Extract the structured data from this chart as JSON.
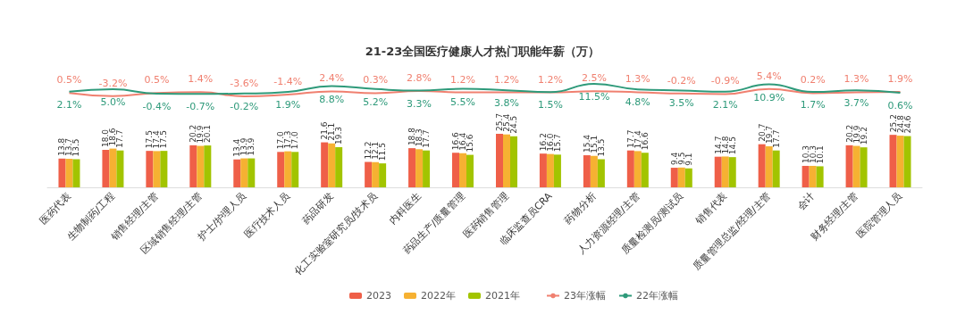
{
  "chart_data": [
    {
      "type": "line",
      "title": "21-23全国医疗健康人才热门职能年薪（万）",
      "legend": "bottom",
      "categories": [
        null,
        null,
        null,
        null,
        null,
        null,
        null,
        null,
        null,
        null,
        null,
        null,
        null,
        null,
        null,
        null,
        null,
        null,
        null,
        null
      ],
      "series": [
        {
          "name": "23年涨幅",
          "color": "#f08070",
          "values": [
            0.5,
            -3.2,
            0.5,
            1.4,
            -3.6,
            -1.4,
            2.4,
            0.3,
            2.8,
            1.2,
            1.2,
            1.2,
            2.5,
            1.3,
            -0.2,
            -0.9,
            5.4,
            0.2,
            1.3,
            1.9
          ],
          "value_labels": [
            "0.5%",
            "-3.2%",
            "0.5%",
            "1.4%",
            "-3.6%",
            "-1.4%",
            "2.4%",
            "0.3%",
            "2.8%",
            "1.2%",
            "1.2%",
            "1.2%",
            "2.5%",
            "1.3%",
            "-0.2%",
            "-0.9%",
            "5.4%",
            "0.2%",
            "1.3%",
            "1.9%"
          ]
        },
        {
          "name": "22年涨幅",
          "color": "#2e9a7a",
          "values": [
            2.1,
            5.0,
            -0.4,
            -0.7,
            -0.2,
            1.9,
            8.8,
            5.2,
            3.3,
            5.5,
            3.8,
            1.5,
            11.5,
            4.8,
            3.5,
            2.1,
            10.9,
            1.7,
            3.7,
            0.6
          ],
          "value_labels": [
            "2.1%",
            "5.0%",
            "-0.4%",
            "-0.7%",
            "-0.2%",
            "1.9%",
            "8.8%",
            "5.2%",
            "3.3%",
            "5.5%",
            "3.8%",
            "1.5%",
            "11.5%",
            "4.8%",
            "3.5%",
            "2.1%",
            "10.9%",
            "1.7%",
            "3.7%",
            "0.6%"
          ]
        }
      ]
    },
    {
      "type": "bar",
      "legend": "bottom",
      "categories": [
        "医药代表",
        "生物制药/工程",
        "销售经理/主管",
        "区域销售经理/主管",
        "护士/护理人员",
        "医疗技术人员",
        "药品研发",
        "化工实验室研究员/技术员",
        "内科医生",
        "药品生产/质量管理",
        "医药销售管理",
        "临床监查员CRA",
        "药物分析",
        "人力资源经理/主管",
        "质量检测员/测试员",
        "销售代表",
        "质量管理总监/经理/主管",
        "会计",
        "财务经理/主管",
        "医院管理人员"
      ],
      "series": [
        {
          "name": "2023",
          "color": "#ef5f48",
          "values": [
            13.8,
            18.0,
            17.5,
            20.2,
            13.4,
            17.0,
            21.6,
            12.2,
            18.8,
            16.6,
            25.7,
            16.2,
            15.4,
            17.7,
            9.4,
            14.7,
            20.7,
            10.3,
            20.2,
            25.2
          ],
          "value_labels": [
            "13.8",
            "18.0",
            "17.5",
            "20.2",
            "13.4",
            "17.0",
            "21.6",
            "12.2",
            "18.8",
            "16.6",
            "25.7",
            "16.2",
            "15.4",
            "17.7",
            "9.4",
            "14.7",
            "20.7",
            "10.3",
            "20.2",
            "25.2"
          ]
        },
        {
          "name": "2022年",
          "color": "#f6b132",
          "values": [
            13.7,
            18.6,
            17.4,
            19.9,
            13.9,
            17.3,
            21.1,
            12.1,
            18.3,
            16.4,
            25.4,
            16.0,
            15.1,
            17.4,
            9.5,
            14.8,
            19.7,
            10.3,
            19.9,
            24.8
          ],
          "value_labels": [
            "13.7",
            "18.6",
            "17.4",
            "19.9",
            "13.9",
            "17.3",
            "21.1",
            "12.1",
            "18.3",
            "16.4",
            "25.4",
            "16.0",
            "15.1",
            "17.4",
            "9.5",
            "14.8",
            "19.7",
            "10.3",
            "19.9",
            "24.8"
          ]
        },
        {
          "name": "2021年",
          "color": "#a2c400",
          "values": [
            13.5,
            17.7,
            17.5,
            20.1,
            13.9,
            17.0,
            19.3,
            11.5,
            17.7,
            15.6,
            24.5,
            15.7,
            13.5,
            16.6,
            9.1,
            14.5,
            17.7,
            10.1,
            19.2,
            24.6
          ],
          "value_labels": [
            "13.5",
            "17.7",
            "17.5",
            "20.1",
            "13.9",
            "17.0",
            "19.3",
            "11.5",
            "17.7",
            "15.6",
            "24.5",
            "15.7",
            "13.5",
            "16.6",
            "9.1",
            "14.5",
            "17.7",
            "10.1",
            "19.2",
            "24.6"
          ]
        }
      ]
    }
  ]
}
